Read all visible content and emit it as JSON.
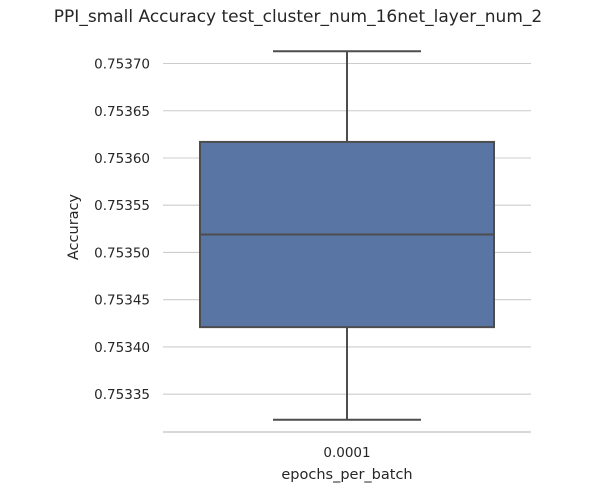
{
  "chart_data": {
    "type": "box",
    "title": "PPI_small Accuracy test_cluster_num_16net_layer_num_2",
    "xlabel": "epochs_per_batch",
    "ylabel": "Accuracy",
    "categories": [
      "0.0001"
    ],
    "box": {
      "whisker_low": 0.753323,
      "q1": 0.753421,
      "median": 0.753519,
      "q3": 0.753617,
      "whisker_high": 0.753713
    },
    "ylim": [
      0.75331,
      0.753727
    ],
    "yticks": [
      0.75335,
      0.7534,
      0.75345,
      0.7535,
      0.75355,
      0.7536,
      0.75365,
      0.7537
    ],
    "ytick_labels": [
      "0.75335",
      "0.75340",
      "0.75345",
      "0.75350",
      "0.75355",
      "0.75360",
      "0.75365",
      "0.75370"
    ],
    "grid": true,
    "box_color": "#5875a4",
    "line_color": "#4d4d4d"
  }
}
